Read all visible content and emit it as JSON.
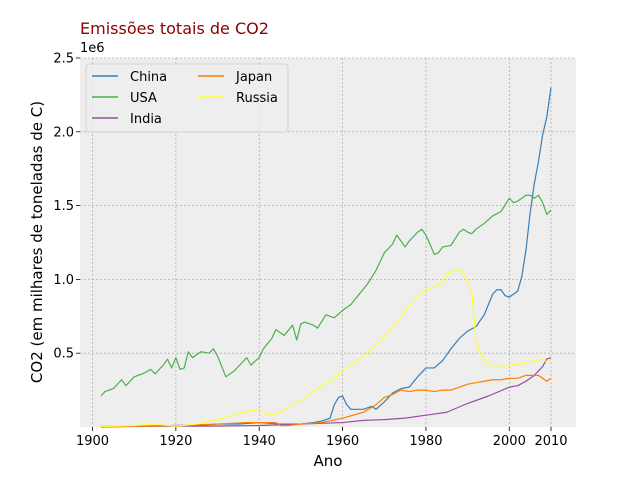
{
  "chart_data": {
    "type": "line",
    "title": "Emissões totais de CO2",
    "title_color": "#8b0000",
    "xlabel": "Ano",
    "ylabel": "CO2 (em milhares de toneladas de C)",
    "y_offset_label": "1e6",
    "xlim": [
      1897,
      2016
    ],
    "ylim": [
      0,
      2.5
    ],
    "x_ticks": [
      1900,
      1920,
      1940,
      1960,
      1980,
      2000,
      2010
    ],
    "x_tick_labels": [
      "1900",
      "1920",
      "1940",
      "1960",
      "1980",
      "2000",
      "2010"
    ],
    "y_ticks": [
      0.5,
      1.0,
      1.5,
      2.0,
      2.5
    ],
    "y_tick_labels": [
      "0.5",
      "1.0",
      "1.5",
      "2.0",
      "2.5"
    ],
    "grid": true,
    "legend_position": "top-left",
    "series": [
      {
        "name": "China",
        "color": "#377eb8",
        "points": [
          [
            1902,
            0
          ],
          [
            1920,
            0.01
          ],
          [
            1925,
            0.01
          ],
          [
            1930,
            0.02
          ],
          [
            1935,
            0.02
          ],
          [
            1940,
            0.03
          ],
          [
            1945,
            0.02
          ],
          [
            1950,
            0.02
          ],
          [
            1953,
            0.03
          ],
          [
            1955,
            0.04
          ],
          [
            1957,
            0.06
          ],
          [
            1958,
            0.15
          ],
          [
            1959,
            0.2
          ],
          [
            1960,
            0.21
          ],
          [
            1961,
            0.15
          ],
          [
            1962,
            0.12
          ],
          [
            1965,
            0.12
          ],
          [
            1967,
            0.14
          ],
          [
            1968,
            0.12
          ],
          [
            1970,
            0.17
          ],
          [
            1972,
            0.23
          ],
          [
            1974,
            0.26
          ],
          [
            1976,
            0.27
          ],
          [
            1978,
            0.34
          ],
          [
            1980,
            0.4
          ],
          [
            1982,
            0.4
          ],
          [
            1984,
            0.45
          ],
          [
            1986,
            0.53
          ],
          [
            1988,
            0.6
          ],
          [
            1990,
            0.65
          ],
          [
            1992,
            0.68
          ],
          [
            1994,
            0.76
          ],
          [
            1996,
            0.9
          ],
          [
            1997,
            0.93
          ],
          [
            1998,
            0.93
          ],
          [
            1999,
            0.89
          ],
          [
            2000,
            0.88
          ],
          [
            2001,
            0.9
          ],
          [
            2002,
            0.92
          ],
          [
            2003,
            1.02
          ],
          [
            2004,
            1.2
          ],
          [
            2005,
            1.45
          ],
          [
            2006,
            1.65
          ],
          [
            2007,
            1.8
          ],
          [
            2008,
            1.98
          ],
          [
            2009,
            2.1
          ],
          [
            2010,
            2.3
          ]
        ]
      },
      {
        "name": "USA",
        "color": "#4daf4a",
        "points": [
          [
            1902,
            0.21
          ],
          [
            1903,
            0.24
          ],
          [
            1905,
            0.26
          ],
          [
            1907,
            0.32
          ],
          [
            1908,
            0.28
          ],
          [
            1910,
            0.34
          ],
          [
            1912,
            0.36
          ],
          [
            1914,
            0.39
          ],
          [
            1915,
            0.36
          ],
          [
            1917,
            0.42
          ],
          [
            1918,
            0.46
          ],
          [
            1919,
            0.4
          ],
          [
            1920,
            0.47
          ],
          [
            1921,
            0.39
          ],
          [
            1922,
            0.4
          ],
          [
            1923,
            0.51
          ],
          [
            1924,
            0.47
          ],
          [
            1926,
            0.51
          ],
          [
            1928,
            0.5
          ],
          [
            1929,
            0.53
          ],
          [
            1930,
            0.48
          ],
          [
            1931,
            0.41
          ],
          [
            1932,
            0.34
          ],
          [
            1934,
            0.38
          ],
          [
            1935,
            0.41
          ],
          [
            1937,
            0.47
          ],
          [
            1938,
            0.42
          ],
          [
            1940,
            0.47
          ],
          [
            1941,
            0.53
          ],
          [
            1943,
            0.6
          ],
          [
            1944,
            0.66
          ],
          [
            1946,
            0.62
          ],
          [
            1948,
            0.69
          ],
          [
            1949,
            0.59
          ],
          [
            1950,
            0.7
          ],
          [
            1951,
            0.71
          ],
          [
            1953,
            0.69
          ],
          [
            1954,
            0.67
          ],
          [
            1956,
            0.76
          ],
          [
            1958,
            0.74
          ],
          [
            1960,
            0.79
          ],
          [
            1962,
            0.83
          ],
          [
            1964,
            0.9
          ],
          [
            1966,
            0.97
          ],
          [
            1968,
            1.06
          ],
          [
            1970,
            1.18
          ],
          [
            1972,
            1.24
          ],
          [
            1973,
            1.3
          ],
          [
            1974,
            1.26
          ],
          [
            1975,
            1.22
          ],
          [
            1976,
            1.26
          ],
          [
            1978,
            1.32
          ],
          [
            1979,
            1.34
          ],
          [
            1980,
            1.3
          ],
          [
            1982,
            1.17
          ],
          [
            1983,
            1.18
          ],
          [
            1984,
            1.22
          ],
          [
            1986,
            1.23
          ],
          [
            1988,
            1.32
          ],
          [
            1989,
            1.34
          ],
          [
            1990,
            1.32
          ],
          [
            1991,
            1.31
          ],
          [
            1992,
            1.34
          ],
          [
            1994,
            1.38
          ],
          [
            1996,
            1.43
          ],
          [
            1998,
            1.46
          ],
          [
            2000,
            1.55
          ],
          [
            2001,
            1.52
          ],
          [
            2002,
            1.53
          ],
          [
            2004,
            1.57
          ],
          [
            2005,
            1.57
          ],
          [
            2006,
            1.55
          ],
          [
            2007,
            1.57
          ],
          [
            2008,
            1.52
          ],
          [
            2009,
            1.44
          ],
          [
            2010,
            1.47
          ]
        ]
      },
      {
        "name": "India",
        "color": "#984ea3",
        "points": [
          [
            1902,
            0.004
          ],
          [
            1910,
            0.005
          ],
          [
            1920,
            0.006
          ],
          [
            1930,
            0.007
          ],
          [
            1940,
            0.01
          ],
          [
            1950,
            0.02
          ],
          [
            1955,
            0.025
          ],
          [
            1960,
            0.03
          ],
          [
            1965,
            0.045
          ],
          [
            1970,
            0.05
          ],
          [
            1975,
            0.06
          ],
          [
            1980,
            0.08
          ],
          [
            1985,
            0.1
          ],
          [
            1990,
            0.16
          ],
          [
            1995,
            0.21
          ],
          [
            2000,
            0.27
          ],
          [
            2002,
            0.28
          ],
          [
            2004,
            0.31
          ],
          [
            2006,
            0.35
          ],
          [
            2008,
            0.41
          ],
          [
            2009,
            0.46
          ],
          [
            2010,
            0.47
          ]
        ]
      },
      {
        "name": "Japan",
        "color": "#ff7f00",
        "points": [
          [
            1902,
            0.003
          ],
          [
            1910,
            0.005
          ],
          [
            1920,
            0.01
          ],
          [
            1930,
            0.02
          ],
          [
            1937,
            0.03
          ],
          [
            1940,
            0.03
          ],
          [
            1944,
            0.03
          ],
          [
            1945,
            0.01
          ],
          [
            1947,
            0.01
          ],
          [
            1950,
            0.02
          ],
          [
            1955,
            0.03
          ],
          [
            1960,
            0.06
          ],
          [
            1965,
            0.1
          ],
          [
            1968,
            0.15
          ],
          [
            1970,
            0.2
          ],
          [
            1972,
            0.22
          ],
          [
            1974,
            0.25
          ],
          [
            1976,
            0.24
          ],
          [
            1978,
            0.25
          ],
          [
            1980,
            0.25
          ],
          [
            1982,
            0.24
          ],
          [
            1984,
            0.25
          ],
          [
            1986,
            0.25
          ],
          [
            1988,
            0.27
          ],
          [
            1990,
            0.29
          ],
          [
            1992,
            0.3
          ],
          [
            1994,
            0.31
          ],
          [
            1996,
            0.32
          ],
          [
            1998,
            0.32
          ],
          [
            2000,
            0.33
          ],
          [
            2002,
            0.33
          ],
          [
            2004,
            0.35
          ],
          [
            2006,
            0.35
          ],
          [
            2007,
            0.35
          ],
          [
            2008,
            0.33
          ],
          [
            2009,
            0.31
          ],
          [
            2010,
            0.33
          ]
        ]
      },
      {
        "name": "Russia",
        "color": "#ffff33",
        "points": [
          [
            1902,
            0.003
          ],
          [
            1910,
            0.01
          ],
          [
            1915,
            0.02
          ],
          [
            1920,
            0.005
          ],
          [
            1925,
            0.02
          ],
          [
            1930,
            0.05
          ],
          [
            1935,
            0.09
          ],
          [
            1938,
            0.11
          ],
          [
            1940,
            0.12
          ],
          [
            1941,
            0.1
          ],
          [
            1943,
            0.08
          ],
          [
            1945,
            0.1
          ],
          [
            1948,
            0.15
          ],
          [
            1950,
            0.18
          ],
          [
            1955,
            0.28
          ],
          [
            1958,
            0.33
          ],
          [
            1960,
            0.38
          ],
          [
            1965,
            0.48
          ],
          [
            1968,
            0.55
          ],
          [
            1970,
            0.61
          ],
          [
            1972,
            0.68
          ],
          [
            1975,
            0.78
          ],
          [
            1977,
            0.86
          ],
          [
            1980,
            0.93
          ],
          [
            1982,
            0.95
          ],
          [
            1984,
            0.98
          ],
          [
            1985,
            1.04
          ],
          [
            1987,
            1.06
          ],
          [
            1988,
            1.07
          ],
          [
            1989,
            1.04
          ],
          [
            1990,
            0.98
          ],
          [
            1991,
            0.92
          ],
          [
            1992,
            0.58
          ],
          [
            1993,
            0.5
          ],
          [
            1994,
            0.45
          ],
          [
            1995,
            0.43
          ],
          [
            1996,
            0.42
          ],
          [
            1997,
            0.41
          ],
          [
            1998,
            0.4
          ],
          [
            1999,
            0.41
          ],
          [
            2000,
            0.42
          ],
          [
            2002,
            0.42
          ],
          [
            2004,
            0.44
          ],
          [
            2006,
            0.45
          ],
          [
            2008,
            0.46
          ],
          [
            2009,
            0.44
          ],
          [
            2010,
            0.46
          ]
        ]
      }
    ]
  }
}
